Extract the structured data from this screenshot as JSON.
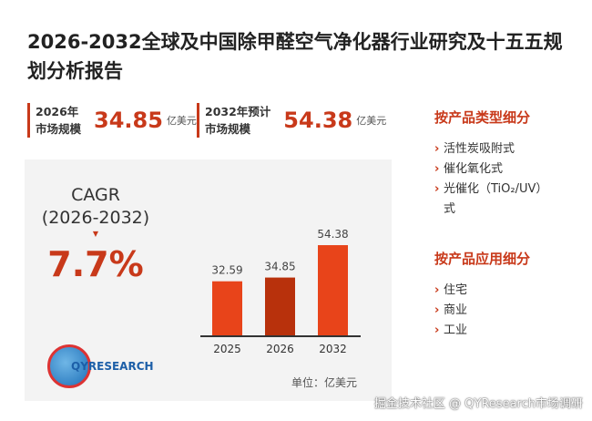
{
  "title": "2026-2032全球及中国除甲醛空气净化器行业研究及十五五规划分析报告",
  "stats": [
    {
      "label1": "2026年",
      "label2": "市场规模",
      "value": "34.85",
      "unit": "亿美元"
    },
    {
      "label1": "2032年预计",
      "label2": "市场规模",
      "value": "54.38",
      "unit": "亿美元"
    }
  ],
  "cagr": {
    "label": "CAGR",
    "period": "(2026-2032)",
    "value": "7.7%"
  },
  "logo": "QYRESEARCH",
  "chart_data": {
    "type": "bar",
    "categories": [
      "2025",
      "2026",
      "2032"
    ],
    "values": [
      32.59,
      34.85,
      54.38
    ],
    "value_labels": [
      "32.59",
      "34.85",
      "54.38"
    ],
    "colors": [
      "#e8441a",
      "#b8310c",
      "#e8441a"
    ],
    "unit_label": "单位：亿美元",
    "ylim": [
      0,
      60
    ]
  },
  "segments": [
    {
      "title": "按产品类型细分",
      "items": [
        "活性炭吸附式",
        "催化氧化式",
        "光催化（TiO₂/UV）式"
      ]
    },
    {
      "title": "按产品应用细分",
      "items": [
        "住宅",
        "商业",
        "工业"
      ]
    }
  ],
  "footer": "掘金技术社区 @ QYResearch市场调研"
}
